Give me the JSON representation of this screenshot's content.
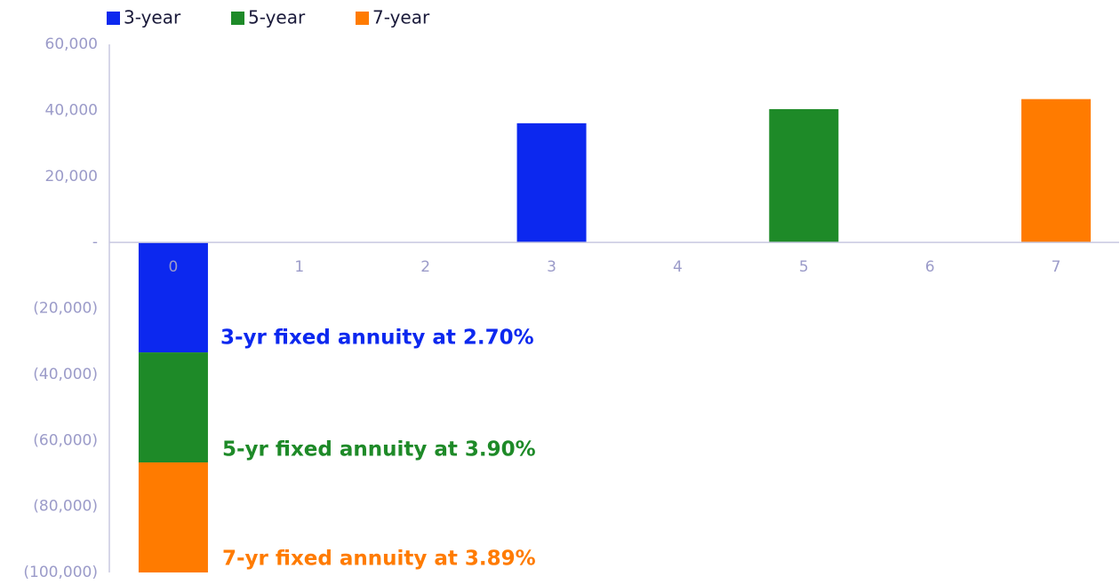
{
  "chart_data": {
    "type": "bar",
    "stacked": true,
    "categories": [
      "0",
      "1",
      "2",
      "3",
      "4",
      "5",
      "6",
      "7"
    ],
    "series": [
      {
        "name": "3-year",
        "color": "#0c28ef",
        "values": [
          -33333,
          null,
          null,
          36106,
          null,
          null,
          null,
          null
        ]
      },
      {
        "name": "5-year",
        "color": "#1e8a28",
        "values": [
          -33333,
          null,
          null,
          null,
          null,
          40381,
          null,
          null
        ]
      },
      {
        "name": "7-year",
        "color": "#ff7b00",
        "values": [
          -33333,
          null,
          null,
          null,
          null,
          null,
          null,
          43420
        ]
      }
    ],
    "ylim": [
      -100000,
      60000
    ],
    "yticks": [
      {
        "value": -100000,
        "label": "(100,000)"
      },
      {
        "value": -80000,
        "label": "(80,000)"
      },
      {
        "value": -60000,
        "label": "(60,000)"
      },
      {
        "value": -40000,
        "label": "(40,000)"
      },
      {
        "value": -20000,
        "label": "(20,000)"
      },
      {
        "value": 0,
        "label": "-"
      },
      {
        "value": 20000,
        "label": "20,000"
      },
      {
        "value": 40000,
        "label": "40,000"
      },
      {
        "value": 60000,
        "label": "60,000"
      }
    ],
    "grid": false,
    "legend": "top-left",
    "annotations": [
      "3-yr fixed annuity at 2.70%",
      "5-yr fixed annuity at 3.90%",
      "7-yr fixed annuity at 3.89%"
    ]
  }
}
